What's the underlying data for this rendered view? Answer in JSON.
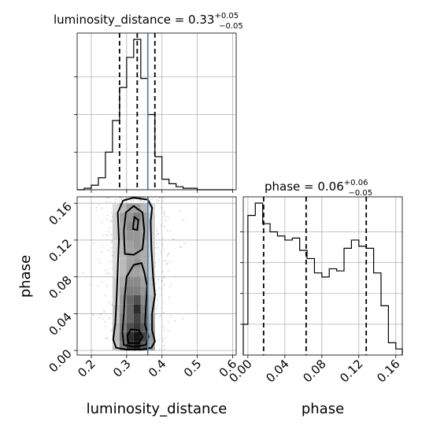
{
  "chart_data": [
    {
      "type": "histogram",
      "panel": "top-left",
      "parameter": "luminosity_distance",
      "title": "luminosity_distance = 0.33",
      "title_sup": "+0.05",
      "title_sub": "−0.05",
      "xlim": [
        0.16,
        0.61
      ],
      "bins": [
        0.16,
        0.18,
        0.2,
        0.22,
        0.24,
        0.26,
        0.28,
        0.3,
        0.32,
        0.34,
        0.36,
        0.38,
        0.4,
        0.42,
        0.44,
        0.46,
        0.48,
        0.5,
        0.52,
        0.54,
        0.56,
        0.58,
        0.6
      ],
      "counts": [
        0,
        1,
        3,
        8,
        25,
        46,
        68,
        88,
        100,
        74,
        50,
        22,
        7,
        4,
        2,
        1,
        1,
        0,
        0,
        0,
        0,
        0
      ],
      "quantiles": [
        0.28,
        0.33,
        0.38
      ],
      "truth": 0.36,
      "grid": true
    },
    {
      "type": "histogram",
      "panel": "bottom-right",
      "parameter": "phase",
      "title": "phase = 0.06",
      "title_sup": "+0.06",
      "title_sub": "−0.05",
      "xlim": [
        -0.005,
        0.167
      ],
      "xticks": [
        "0.00",
        "0.04",
        "0.08",
        "0.12",
        "0.16"
      ],
      "xlabel": "phase",
      "bins": [
        -0.005,
        0.0,
        0.008,
        0.016,
        0.024,
        0.032,
        0.04,
        0.048,
        0.056,
        0.064,
        0.072,
        0.08,
        0.088,
        0.096,
        0.104,
        0.112,
        0.12,
        0.128,
        0.136,
        0.144,
        0.152,
        0.16,
        0.167
      ],
      "counts": [
        15,
        68,
        74,
        64,
        60,
        58,
        56,
        57,
        51,
        47,
        40,
        38,
        42,
        41,
        52,
        56,
        53,
        52,
        40,
        24,
        6,
        3
      ],
      "quantiles": [
        0.017,
        0.063,
        0.128
      ],
      "grid": true
    },
    {
      "type": "heatmap",
      "panel": "bottom-left",
      "x_parameter": "luminosity_distance",
      "y_parameter": "phase",
      "xlabel": "luminosity_distance",
      "ylabel": "phase",
      "xlim": [
        0.16,
        0.61
      ],
      "ylim": [
        -0.005,
        0.167
      ],
      "xticks": [
        "0.2",
        "0.3",
        "0.4",
        "0.5",
        "0.6"
      ],
      "yticks": [
        "0.00",
        "0.04",
        "0.08",
        "0.12",
        "0.16"
      ],
      "truth_x": 0.36,
      "density": {
        "x_edges": [
          0.26,
          0.28,
          0.3,
          0.32,
          0.34,
          0.36,
          0.38
        ],
        "y_edges": [
          0.0,
          0.01,
          0.02,
          0.03,
          0.04,
          0.05,
          0.06,
          0.07,
          0.08,
          0.09,
          0.1,
          0.11,
          0.12,
          0.13,
          0.14,
          0.15,
          0.16
        ],
        "values": [
          [
            0.25,
            0.55,
            0.85,
            0.95,
            0.7,
            0.4
          ],
          [
            0.3,
            0.6,
            0.9,
            1.0,
            0.8,
            0.45
          ],
          [
            0.3,
            0.55,
            0.75,
            0.85,
            0.7,
            0.4
          ],
          [
            0.25,
            0.5,
            0.65,
            0.8,
            0.6,
            0.35
          ],
          [
            0.25,
            0.45,
            0.65,
            0.9,
            0.55,
            0.3
          ],
          [
            0.2,
            0.45,
            0.65,
            0.75,
            0.5,
            0.3
          ],
          [
            0.2,
            0.4,
            0.55,
            0.55,
            0.45,
            0.25
          ],
          [
            0.2,
            0.35,
            0.5,
            0.5,
            0.4,
            0.25
          ],
          [
            0.15,
            0.3,
            0.4,
            0.4,
            0.35,
            0.2
          ],
          [
            0.15,
            0.3,
            0.4,
            0.45,
            0.35,
            0.2
          ],
          [
            0.15,
            0.3,
            0.4,
            0.4,
            0.35,
            0.2
          ],
          [
            0.15,
            0.3,
            0.4,
            0.45,
            0.35,
            0.2
          ],
          [
            0.2,
            0.35,
            0.45,
            0.45,
            0.4,
            0.2
          ],
          [
            0.2,
            0.35,
            0.5,
            0.45,
            0.4,
            0.2
          ],
          [
            0.2,
            0.4,
            0.45,
            0.55,
            0.4,
            0.2
          ],
          [
            0.15,
            0.3,
            0.4,
            0.4,
            0.3,
            0.15
          ]
        ]
      },
      "contours": [
        [
          [
            0.27,
            0.003
          ],
          [
            0.3,
            0.001
          ],
          [
            0.34,
            0.001
          ],
          [
            0.37,
            0.003
          ],
          [
            0.38,
            0.01
          ],
          [
            0.372,
            0.022
          ],
          [
            0.372,
            0.04
          ],
          [
            0.38,
            0.06
          ],
          [
            0.375,
            0.08
          ],
          [
            0.37,
            0.11
          ],
          [
            0.368,
            0.14
          ],
          [
            0.372,
            0.155
          ],
          [
            0.36,
            0.164
          ],
          [
            0.32,
            0.166
          ],
          [
            0.29,
            0.163
          ],
          [
            0.275,
            0.15
          ],
          [
            0.278,
            0.12
          ],
          [
            0.275,
            0.09
          ],
          [
            0.272,
            0.06
          ],
          [
            0.268,
            0.03
          ],
          [
            0.262,
            0.012
          ],
          [
            0.27,
            0.003
          ]
        ],
        [
          [
            0.292,
            0.006
          ],
          [
            0.32,
            0.004
          ],
          [
            0.355,
            0.006
          ],
          [
            0.362,
            0.015
          ],
          [
            0.352,
            0.028
          ],
          [
            0.355,
            0.05
          ],
          [
            0.358,
            0.07
          ],
          [
            0.35,
            0.085
          ],
          [
            0.342,
            0.095
          ],
          [
            0.32,
            0.093
          ],
          [
            0.3,
            0.08
          ],
          [
            0.295,
            0.06
          ],
          [
            0.292,
            0.04
          ],
          [
            0.288,
            0.02
          ],
          [
            0.292,
            0.006
          ]
        ],
        [
          [
            0.295,
            0.105
          ],
          [
            0.32,
            0.104
          ],
          [
            0.345,
            0.11
          ],
          [
            0.35,
            0.13
          ],
          [
            0.345,
            0.15
          ],
          [
            0.32,
            0.157
          ],
          [
            0.298,
            0.15
          ],
          [
            0.292,
            0.13
          ],
          [
            0.295,
            0.105
          ]
        ],
        [
          [
            0.305,
            0.008
          ],
          [
            0.335,
            0.008
          ],
          [
            0.345,
            0.015
          ],
          [
            0.335,
            0.022
          ],
          [
            0.312,
            0.023
          ],
          [
            0.302,
            0.016
          ],
          [
            0.305,
            0.008
          ]
        ],
        [
          [
            0.318,
            0.132
          ],
          [
            0.33,
            0.131
          ],
          [
            0.333,
            0.142
          ],
          [
            0.322,
            0.145
          ],
          [
            0.318,
            0.132
          ]
        ]
      ]
    }
  ]
}
